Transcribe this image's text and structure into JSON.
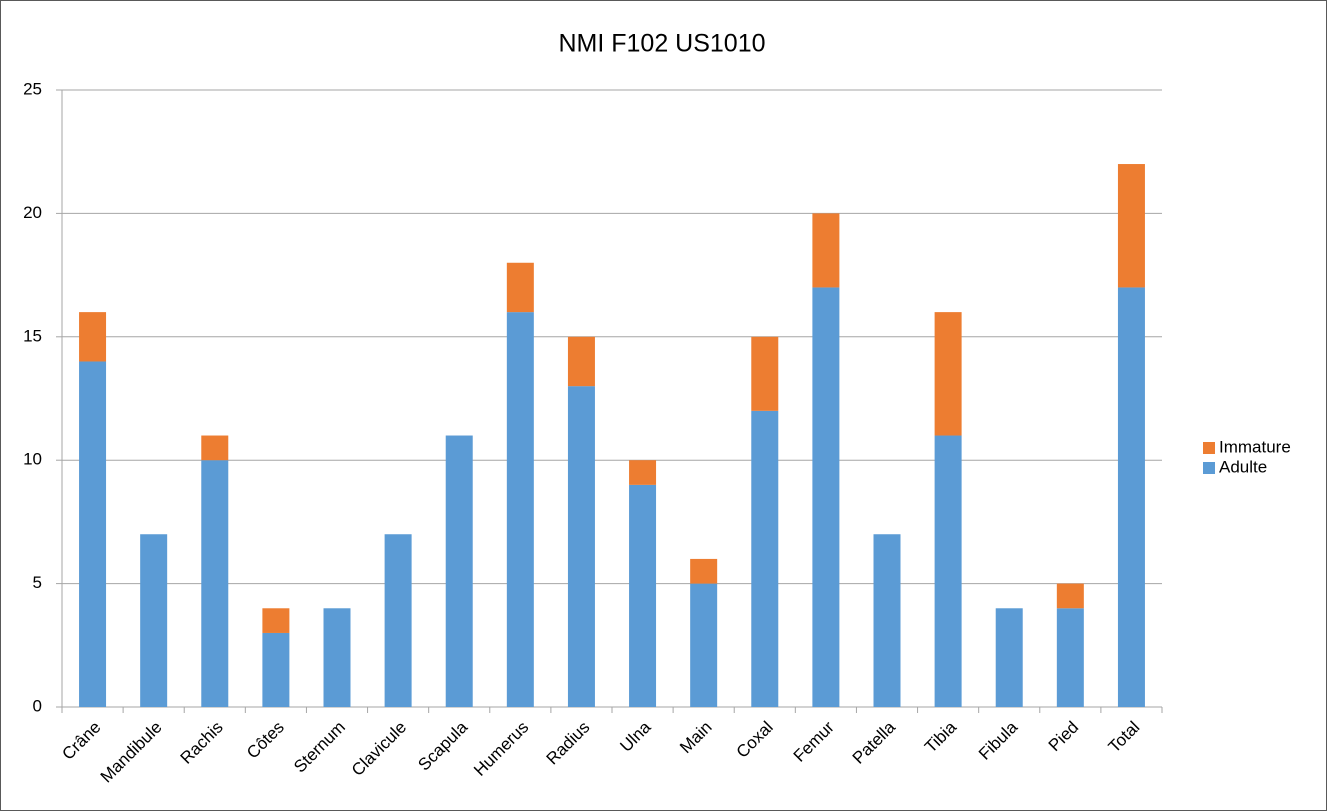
{
  "chart_data": {
    "type": "stacked_bar",
    "title": "NMI F102 US1010",
    "categories": [
      "Crâne",
      "Mandibule",
      "Rachis",
      "Côtes",
      "Sternum",
      "Clavicule",
      "Scapula",
      "Humerus",
      "Radius",
      "Ulna",
      "Main",
      "Coxal",
      "Femur",
      "Patella",
      "Tibia",
      "Fibula",
      "Pied",
      "Total"
    ],
    "series": [
      {
        "name": "Adulte",
        "color": "#5b9bd5",
        "values": [
          14,
          7,
          10,
          3,
          4,
          7,
          11,
          16,
          13,
          9,
          5,
          12,
          17,
          7,
          11,
          4,
          4,
          17
        ]
      },
      {
        "name": "Immature",
        "color": "#ed7d31",
        "values": [
          2,
          0,
          1,
          1,
          0,
          0,
          0,
          2,
          2,
          1,
          1,
          3,
          3,
          0,
          5,
          0,
          1,
          5
        ]
      }
    ],
    "ylim": [
      0,
      25
    ],
    "yticks": [
      0,
      5,
      10,
      15,
      20,
      25
    ],
    "grid": true,
    "legend": "right"
  }
}
